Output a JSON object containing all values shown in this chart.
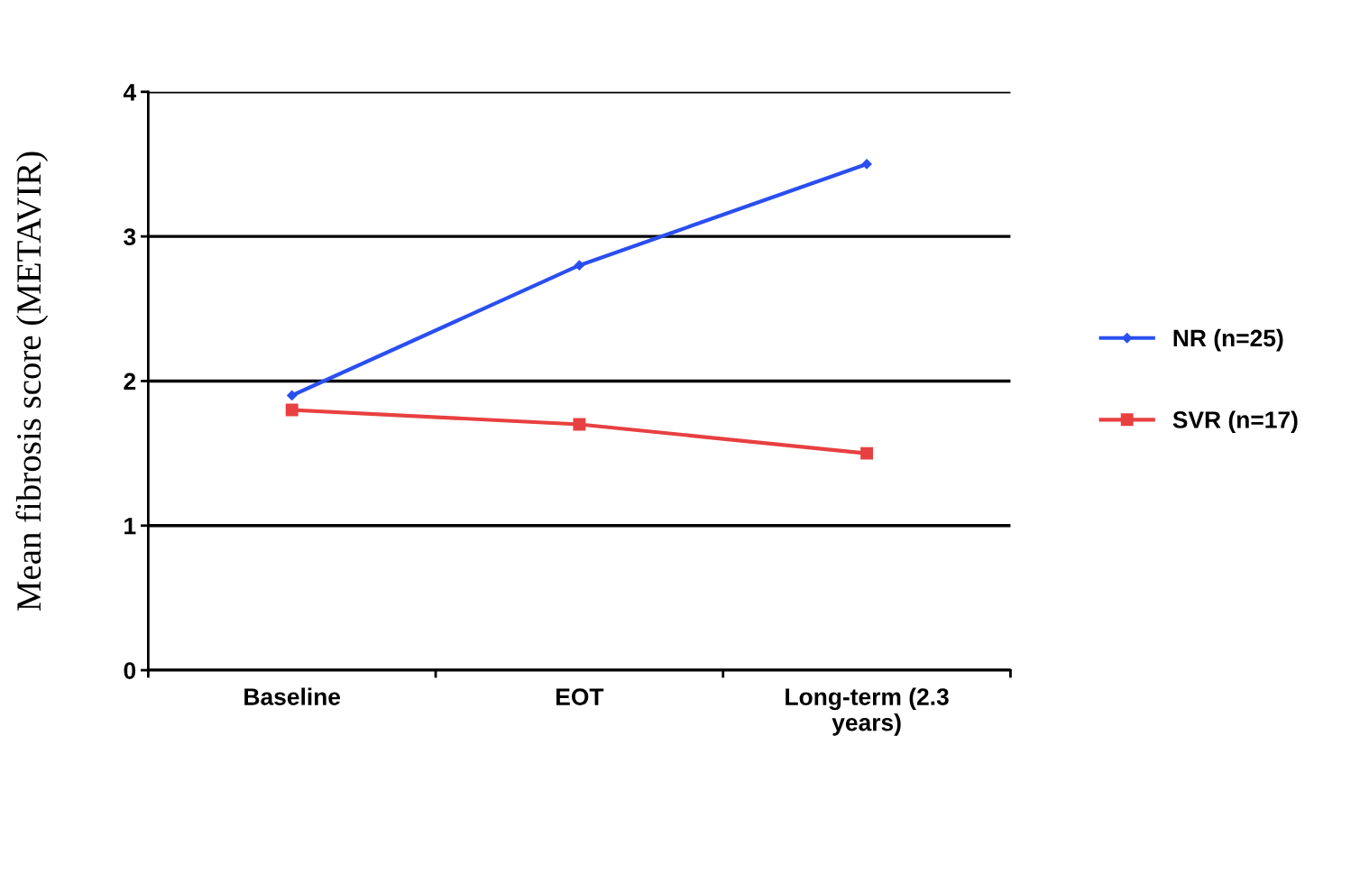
{
  "chart_data": {
    "type": "line",
    "ylabel": "Mean fibrosis score (METAVIR)",
    "categories": [
      "Baseline",
      "EOT",
      "Long-term (2.3\nyears)"
    ],
    "series": [
      {
        "name": "NR (n=25)",
        "color": "#2a4ff0",
        "values": [
          1.9,
          2.8,
          3.5
        ],
        "marker": "diamond"
      },
      {
        "name": "SVR (n=17)",
        "color": "#e84040",
        "values": [
          1.8,
          1.7,
          1.5
        ],
        "marker": "square"
      }
    ],
    "ylim": [
      0,
      4
    ],
    "yticks": [
      0,
      1,
      2,
      3,
      4
    ],
    "grid": "y",
    "legend": "right",
    "line_style": "solid"
  }
}
